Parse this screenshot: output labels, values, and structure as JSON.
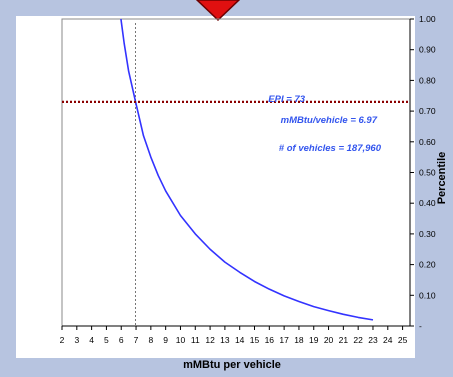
{
  "colors": {
    "background": "#b7c4e0",
    "panel": "#ffffff",
    "curve": "#3333ff",
    "threshold_line": "#8b0000",
    "reference_line": "#555555",
    "annotation": "#3355ee",
    "arrow_fill": "#e01010",
    "arrow_stroke": "#6b0000"
  },
  "icons": {
    "top_arrow": "down-arrow-icon"
  },
  "chart_data": {
    "type": "line",
    "title": "",
    "xlabel": "mMBtu per vehicle",
    "ylabel": "Percentile",
    "xlim": [
      2,
      25
    ],
    "ylim": [
      0,
      1
    ],
    "x_ticks": [
      "2",
      "3",
      "4",
      "5",
      "6",
      "7",
      "8",
      "9",
      "10",
      "11",
      "12",
      "13",
      "14",
      "15",
      "16",
      "17",
      "18",
      "19",
      "20",
      "21",
      "22",
      "23",
      "24",
      "25"
    ],
    "y_ticks": [
      {
        "value": 1.0,
        "label": "1.00"
      },
      {
        "value": 0.9,
        "label": "0.90"
      },
      {
        "value": 0.8,
        "label": "0.80"
      },
      {
        "value": 0.7,
        "label": "0.70"
      },
      {
        "value": 0.6,
        "label": "0.60"
      },
      {
        "value": 0.5,
        "label": "0.50"
      },
      {
        "value": 0.4,
        "label": "0.40"
      },
      {
        "value": 0.3,
        "label": "0.30"
      },
      {
        "value": 0.2,
        "label": "0.20"
      },
      {
        "value": 0.1,
        "label": "0.10"
      },
      {
        "value": 0.0,
        "label": "-"
      }
    ],
    "y_axis_side": "right",
    "grid": false,
    "series": [
      {
        "x": [
          5.98,
          6.2,
          6.5,
          6.97,
          7.5,
          8,
          8.5,
          9,
          10,
          11,
          12,
          13,
          14,
          15,
          16,
          17,
          18,
          19,
          20,
          21,
          22,
          23
        ],
        "y": [
          1.0,
          0.92,
          0.83,
          0.73,
          0.62,
          0.55,
          0.49,
          0.44,
          0.36,
          0.3,
          0.25,
          0.208,
          0.175,
          0.145,
          0.12,
          0.098,
          0.08,
          0.063,
          0.05,
          0.038,
          0.028,
          0.02
        ]
      }
    ],
    "threshold_y": 0.73,
    "reference_x": 6.97,
    "annotations": [
      "EPI = 73",
      "mMBtu/vehicle = 6.97",
      "# of vehicles = 187,960"
    ]
  }
}
